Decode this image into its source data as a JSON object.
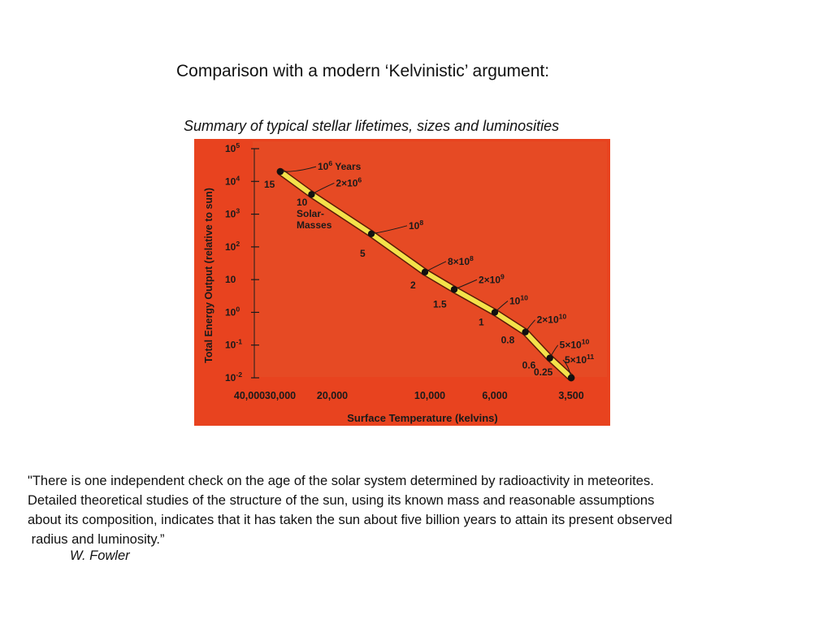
{
  "slide": {
    "title": "Comparison with a modern ‘Kelvinistic’ argument:",
    "subtitle": "Summary of typical stellar lifetimes, sizes and luminosities",
    "quote_lines": [
      "\"There is one independent check on the age of the solar system determined by radioactivity in meteorites.",
      "Detailed theoretical studies of the structure of the sun, using its known mass and reasonable assumptions",
      "about its composition, indicates that it has taken the sun about five billion years to attain its present observed",
      " radius and luminosity.”"
    ],
    "author": "W. Fowler"
  },
  "chart_data": {
    "type": "line",
    "xlabel": "Surface Temperature (kelvins)",
    "ylabel": "Total Energy Output (relative to sun)",
    "x_scale": "reversed",
    "y_scale": "log",
    "ylim_exponents": [
      -2,
      5
    ],
    "x_ticks": [
      "40,000",
      "30,000",
      "20,000",
      "10,000",
      "6,000",
      "3,500"
    ],
    "y_ticks": [
      {
        "base": "10",
        "exp": "5"
      },
      {
        "base": "10",
        "exp": "4"
      },
      {
        "base": "10",
        "exp": "3"
      },
      {
        "base": "10",
        "exp": "2"
      },
      {
        "base": "10",
        "exp": ""
      },
      {
        "base": "10",
        "exp": "0"
      },
      {
        "base": "10",
        "exp": "-1"
      },
      {
        "base": "10",
        "exp": "-2"
      }
    ],
    "solar_masses_label": [
      "10",
      "Solar-",
      "Masses"
    ],
    "points": [
      {
        "temperature": 30000,
        "luminosity": 20000,
        "mass": "15",
        "lifetime_base": "10",
        "lifetime_exp": "6",
        "lifetime_suffix": " Years"
      },
      {
        "temperature": 24000,
        "luminosity": 4000,
        "mass": "",
        "lifetime_base": "2×10",
        "lifetime_exp": "6",
        "lifetime_suffix": ""
      },
      {
        "temperature": 16000,
        "luminosity": 250,
        "mass": "5",
        "lifetime_base": "10",
        "lifetime_exp": "8",
        "lifetime_suffix": ""
      },
      {
        "temperature": 10500,
        "luminosity": 17,
        "mass": "2",
        "lifetime_base": "8×10",
        "lifetime_exp": "8",
        "lifetime_suffix": ""
      },
      {
        "temperature": 8500,
        "luminosity": 5,
        "mass": "1.5",
        "lifetime_base": "2×10",
        "lifetime_exp": "9",
        "lifetime_suffix": ""
      },
      {
        "temperature": 6000,
        "luminosity": 1,
        "mass": "1",
        "lifetime_base": "10",
        "lifetime_exp": "10",
        "lifetime_suffix": ""
      },
      {
        "temperature": 5000,
        "luminosity": 0.25,
        "mass": "0.8",
        "lifetime_base": "2×10",
        "lifetime_exp": "10",
        "lifetime_suffix": ""
      },
      {
        "temperature": 4200,
        "luminosity": 0.04,
        "mass": "0.6",
        "lifetime_base": "5×10",
        "lifetime_exp": "10",
        "lifetime_suffix": ""
      },
      {
        "temperature": 3500,
        "luminosity": 0.01,
        "mass": "0.25",
        "lifetime_base": "5×10",
        "lifetime_exp": "11",
        "lifetime_suffix": ""
      }
    ],
    "colors": {
      "background": "#e8431f",
      "plot": "#e64a24",
      "track": "#f4e24a",
      "track_edge": "#5a1a08",
      "marker": "#111111",
      "text": "#1a1a1a"
    }
  }
}
